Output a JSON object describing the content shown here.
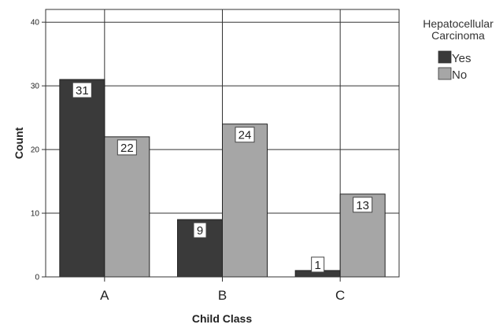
{
  "chart_data": {
    "type": "bar",
    "categories": [
      "A",
      "B",
      "C"
    ],
    "series": [
      {
        "name": "Yes",
        "values": [
          31,
          9,
          1
        ],
        "color": "#3a3a3a"
      },
      {
        "name": "No",
        "values": [
          22,
          24,
          13
        ],
        "color": "#a6a6a6"
      }
    ],
    "xlabel": "Child Class",
    "ylabel": "Count",
    "ylim": [
      0,
      42
    ],
    "yticks": [
      0,
      10,
      20,
      30,
      40
    ],
    "legend": {
      "title_lines": [
        "Hepatocellular",
        "Carcinoma"
      ],
      "placement": "top-right"
    },
    "grid": true,
    "data_labels": true
  }
}
